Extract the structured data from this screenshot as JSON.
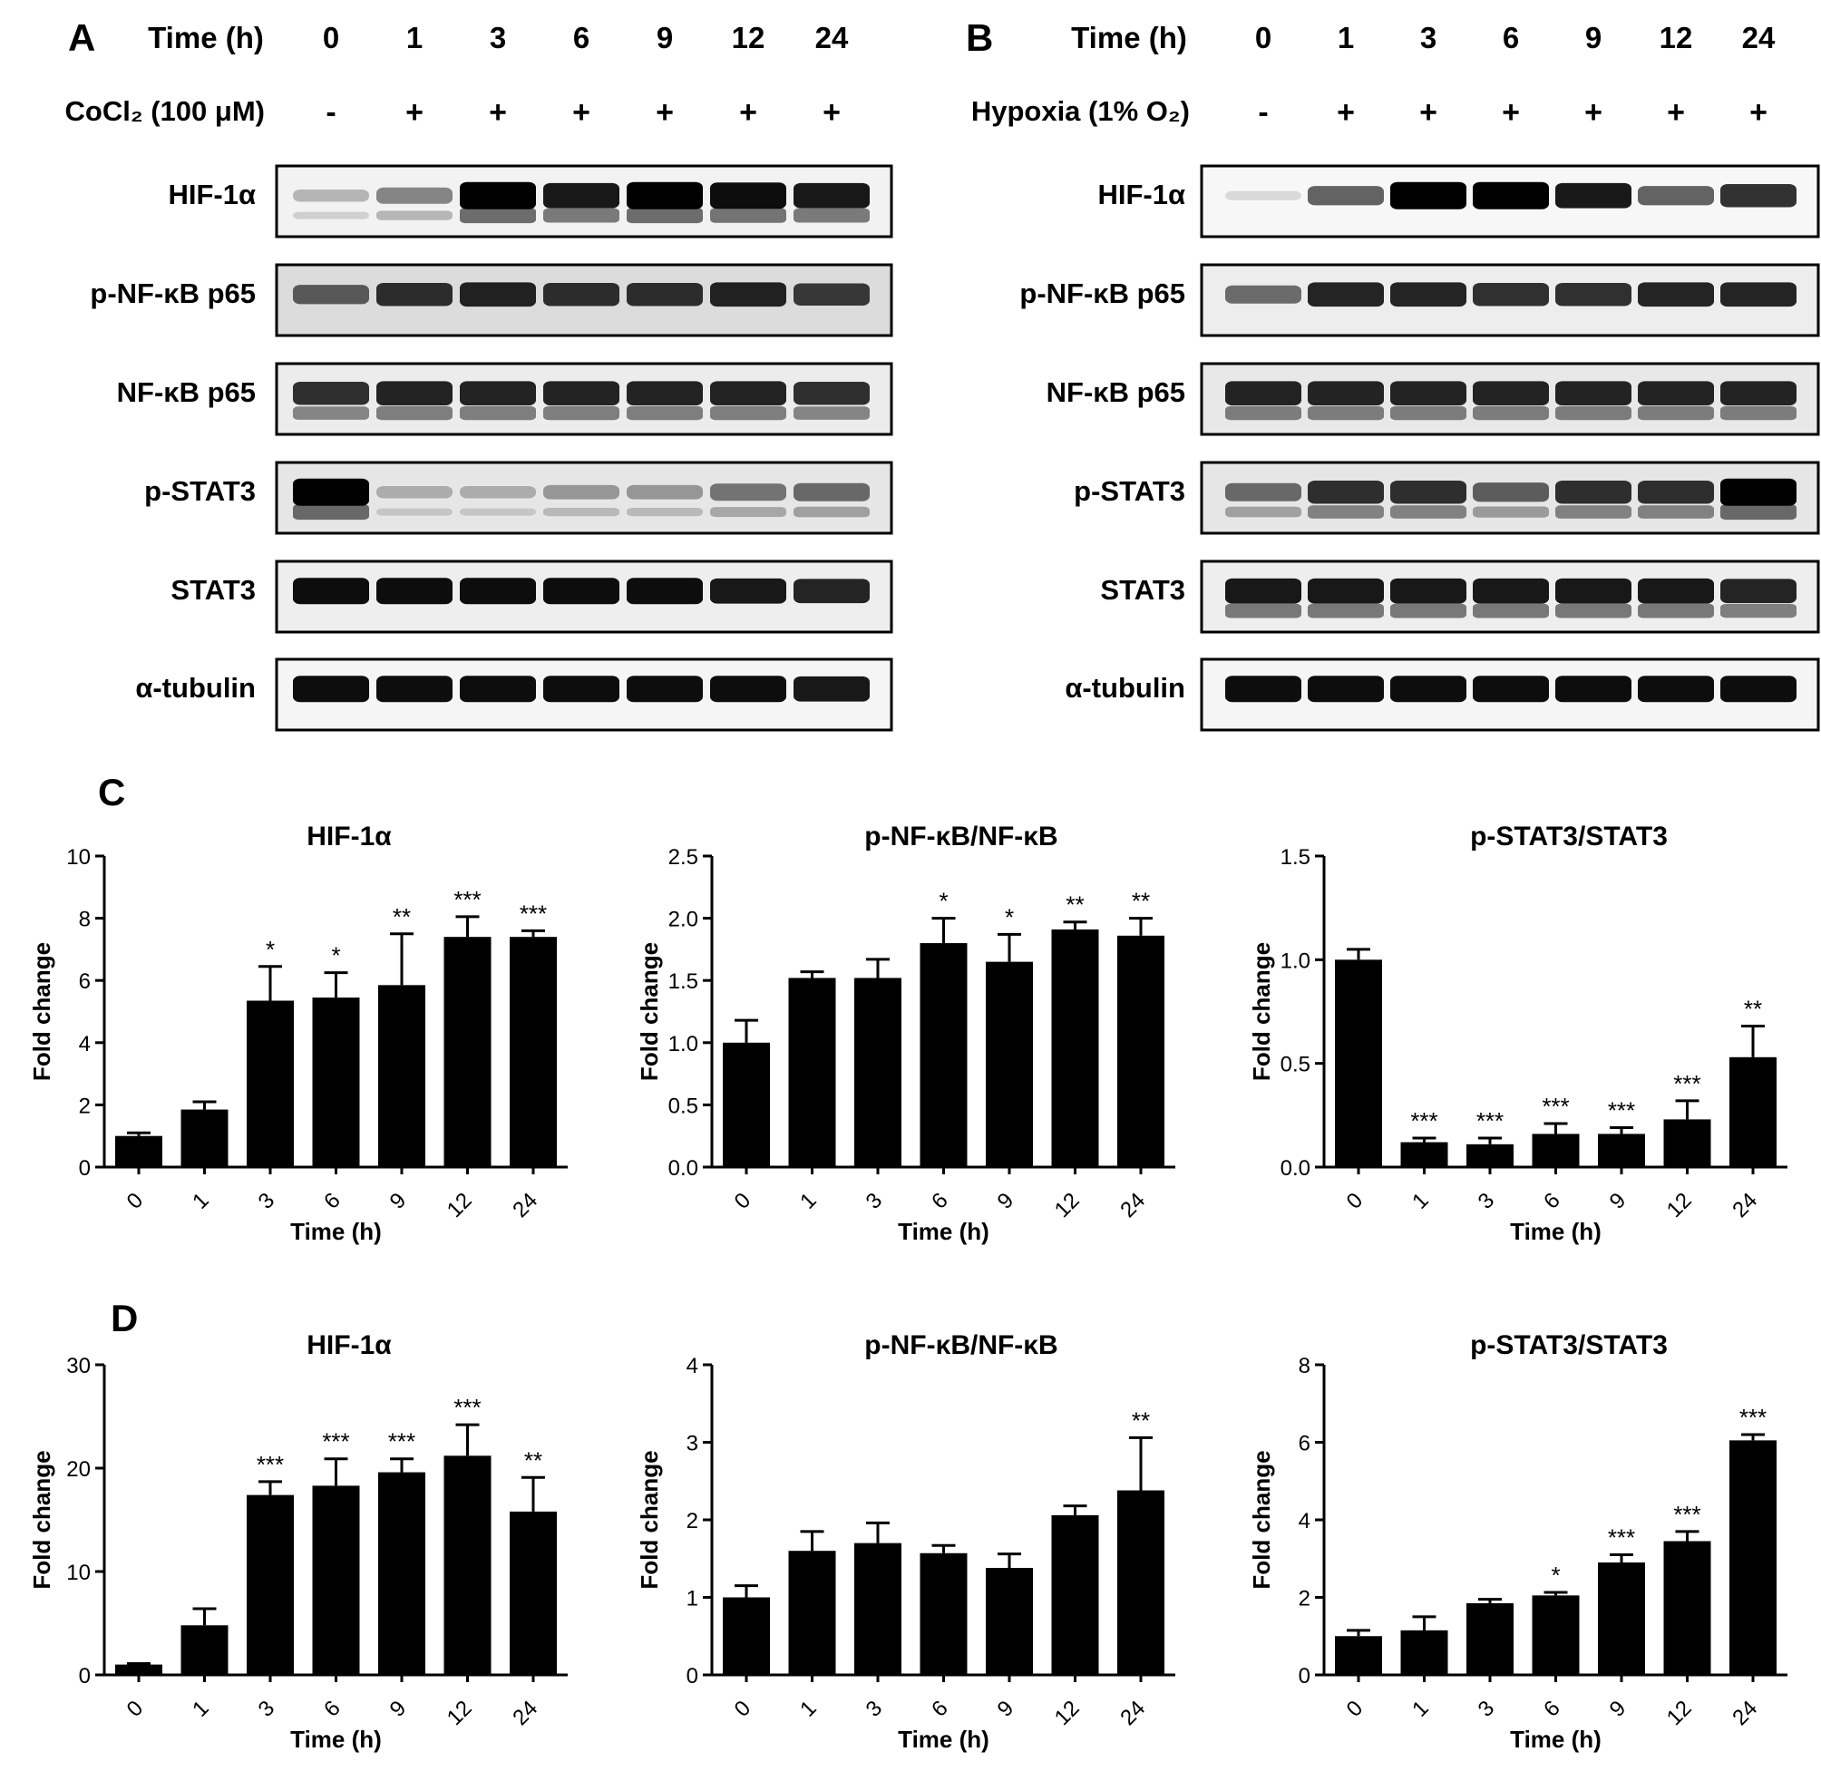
{
  "panel_labels": {
    "A": "A",
    "B": "B",
    "C": "C",
    "D": "D"
  },
  "blots": [
    {
      "id": "A",
      "time_label": "Time (h)",
      "times": [
        "0",
        "1",
        "3",
        "6",
        "9",
        "12",
        "24"
      ],
      "treatment_label": "CoCl₂ (100 μM)",
      "treatment_marks": [
        "-",
        "+",
        "+",
        "+",
        "+",
        "+",
        "+"
      ],
      "rows": [
        {
          "label": "HIF-1α",
          "bg": "#f2f2f2",
          "intensity": [
            0.25,
            0.45,
            1.0,
            0.9,
            1.0,
            0.95,
            0.9
          ],
          "doublet": true
        },
        {
          "label": "p-NF-κB p65",
          "bg": "#dcdcdc",
          "intensity": [
            0.6,
            0.8,
            0.85,
            0.8,
            0.8,
            0.85,
            0.75
          ],
          "doublet": false
        },
        {
          "label": "NF-κB p65",
          "bg": "#ececec",
          "intensity": [
            0.8,
            0.85,
            0.85,
            0.85,
            0.85,
            0.85,
            0.8
          ],
          "doublet": true
        },
        {
          "label": "p-STAT3",
          "bg": "#e6e6e6",
          "intensity": [
            1.0,
            0.25,
            0.25,
            0.35,
            0.35,
            0.5,
            0.55
          ],
          "doublet": true
        },
        {
          "label": "STAT3",
          "bg": "#eeeeee",
          "intensity": [
            0.95,
            0.95,
            0.95,
            0.95,
            0.95,
            0.9,
            0.85
          ],
          "doublet": false
        },
        {
          "label": "α-tubulin",
          "bg": "#f5f5f5",
          "intensity": [
            0.95,
            0.95,
            0.95,
            0.95,
            0.95,
            0.95,
            0.9
          ],
          "doublet": false
        }
      ]
    },
    {
      "id": "B",
      "time_label": "Time (h)",
      "times": [
        "0",
        "1",
        "3",
        "6",
        "9",
        "12",
        "24"
      ],
      "treatment_label": "Hypoxia (1% O₂)",
      "treatment_marks": [
        "-",
        "+",
        "+",
        "+",
        "+",
        "+",
        "+"
      ],
      "rows": [
        {
          "label": "HIF-1α",
          "bg": "#f7f7f7",
          "intensity": [
            0.1,
            0.6,
            1.0,
            1.0,
            0.9,
            0.6,
            0.8
          ],
          "doublet": false
        },
        {
          "label": "p-NF-κB p65",
          "bg": "#ededed",
          "intensity": [
            0.55,
            0.85,
            0.85,
            0.8,
            0.8,
            0.85,
            0.85
          ],
          "doublet": false
        },
        {
          "label": "NF-κB p65",
          "bg": "#e8e8e8",
          "intensity": [
            0.85,
            0.85,
            0.85,
            0.85,
            0.85,
            0.85,
            0.85
          ],
          "doublet": true
        },
        {
          "label": "p-STAT3",
          "bg": "#e6e6e6",
          "intensity": [
            0.55,
            0.8,
            0.8,
            0.6,
            0.8,
            0.8,
            1.0
          ],
          "doublet": true
        },
        {
          "label": "STAT3",
          "bg": "#eeeeee",
          "intensity": [
            0.9,
            0.9,
            0.9,
            0.9,
            0.9,
            0.9,
            0.85
          ],
          "doublet": true
        },
        {
          "label": "α-tubulin",
          "bg": "#f5f5f5",
          "intensity": [
            0.95,
            0.95,
            0.95,
            0.95,
            0.95,
            0.95,
            0.95
          ],
          "doublet": false
        }
      ]
    }
  ],
  "chart_data": [
    {
      "panel": "C",
      "type": "bar",
      "title": "HIF-1α",
      "xlabel": "Time (h)",
      "ylabel": "Fold change",
      "categories": [
        "0",
        "1",
        "3",
        "6",
        "9",
        "12",
        "24"
      ],
      "values": [
        1.0,
        1.85,
        5.35,
        5.45,
        5.85,
        7.4,
        7.4
      ],
      "errors": [
        0.1,
        0.25,
        1.1,
        0.8,
        1.65,
        0.65,
        0.2
      ],
      "significance": [
        "",
        "",
        "*",
        "*",
        "**",
        "***",
        "***"
      ],
      "ylim": [
        0,
        10
      ],
      "yticks": [
        "0",
        "2",
        "4",
        "6",
        "8",
        "10"
      ]
    },
    {
      "panel": "C",
      "type": "bar",
      "title": "p-NF-κB/NF-κB",
      "xlabel": "Time (h)",
      "ylabel": "Fold change",
      "categories": [
        "0",
        "1",
        "3",
        "6",
        "9",
        "12",
        "24"
      ],
      "values": [
        1.0,
        1.52,
        1.52,
        1.8,
        1.65,
        1.91,
        1.86
      ],
      "errors": [
        0.18,
        0.05,
        0.15,
        0.2,
        0.22,
        0.06,
        0.14
      ],
      "significance": [
        "",
        "",
        "",
        "*",
        "*",
        "**",
        "**"
      ],
      "ylim": [
        0,
        2.5
      ],
      "yticks": [
        "0.0",
        "0.5",
        "1.0",
        "1.5",
        "2.0",
        "2.5"
      ]
    },
    {
      "panel": "C",
      "type": "bar",
      "title": "p-STAT3/STAT3",
      "xlabel": "Time (h)",
      "ylabel": "Fold change",
      "categories": [
        "0",
        "1",
        "3",
        "6",
        "9",
        "12",
        "24"
      ],
      "values": [
        1.0,
        0.12,
        0.11,
        0.16,
        0.16,
        0.23,
        0.53
      ],
      "errors": [
        0.05,
        0.02,
        0.03,
        0.05,
        0.03,
        0.09,
        0.15
      ],
      "significance": [
        "",
        "***",
        "***",
        "***",
        "***",
        "***",
        "**"
      ],
      "ylim": [
        0,
        1.5
      ],
      "yticks": [
        "0.0",
        "0.5",
        "1.0",
        "1.5"
      ]
    },
    {
      "panel": "D",
      "type": "bar",
      "title": "HIF-1α",
      "xlabel": "Time (h)",
      "ylabel": "Fold change",
      "categories": [
        "0",
        "1",
        "3",
        "6",
        "9",
        "12",
        "24"
      ],
      "values": [
        1.0,
        4.8,
        17.4,
        18.3,
        19.6,
        21.2,
        15.8
      ],
      "errors": [
        0.1,
        1.6,
        1.3,
        2.6,
        1.3,
        3.0,
        3.3
      ],
      "significance": [
        "",
        "",
        "***",
        "***",
        "***",
        "***",
        "**"
      ],
      "ylim": [
        0,
        30
      ],
      "yticks": [
        "0",
        "10",
        "20",
        "30"
      ]
    },
    {
      "panel": "D",
      "type": "bar",
      "title": "p-NF-κB/NF-κB",
      "xlabel": "Time (h)",
      "ylabel": "Fold change",
      "categories": [
        "0",
        "1",
        "3",
        "6",
        "9",
        "12",
        "24"
      ],
      "values": [
        1.0,
        1.6,
        1.7,
        1.57,
        1.38,
        2.06,
        2.38
      ],
      "errors": [
        0.15,
        0.25,
        0.26,
        0.1,
        0.18,
        0.12,
        0.68
      ],
      "significance": [
        "",
        "",
        "",
        "",
        "",
        "",
        "**"
      ],
      "ylim": [
        0,
        4
      ],
      "yticks": [
        "0",
        "1",
        "2",
        "3",
        "4"
      ]
    },
    {
      "panel": "D",
      "type": "bar",
      "title": "p-STAT3/STAT3",
      "xlabel": "Time (h)",
      "ylabel": "Fold change",
      "categories": [
        "0",
        "1",
        "3",
        "6",
        "9",
        "12",
        "24"
      ],
      "values": [
        1.0,
        1.15,
        1.85,
        2.05,
        2.9,
        3.45,
        6.05
      ],
      "errors": [
        0.15,
        0.35,
        0.1,
        0.08,
        0.2,
        0.25,
        0.15
      ],
      "significance": [
        "",
        "",
        "",
        "*",
        "***",
        "***",
        "***"
      ],
      "ylim": [
        0,
        8
      ],
      "yticks": [
        "0",
        "2",
        "4",
        "6",
        "8"
      ]
    }
  ]
}
